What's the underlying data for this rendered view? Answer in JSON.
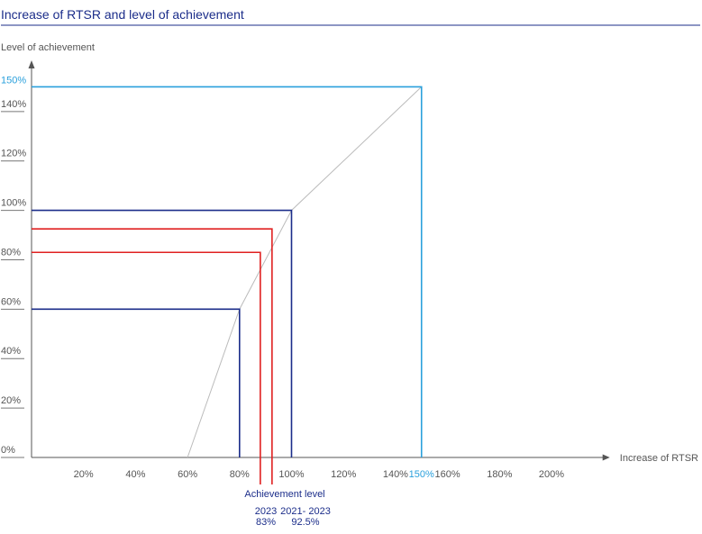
{
  "chart_data": {
    "type": "line",
    "title": "Increase of RTSR and level of achievement",
    "xlabel": "Increase of RTSR",
    "ylabel": "Level of achievement",
    "xlim": [
      0,
      220
    ],
    "ylim": [
      0,
      150
    ],
    "x_ticks": [
      "20%",
      "40%",
      "60%",
      "80%",
      "100%",
      "120%",
      "140%",
      "160%",
      "180%",
      "200%"
    ],
    "x_tick_values": [
      20,
      40,
      60,
      80,
      100,
      120,
      140,
      160,
      180,
      200
    ],
    "y_ticks": [
      "0%",
      "20%",
      "40%",
      "60%",
      "80%",
      "100%",
      "120%",
      "140%"
    ],
    "y_tick_values": [
      0,
      20,
      40,
      60,
      80,
      100,
      120,
      140
    ],
    "cap_label": "150%",
    "cap_value": 150,
    "curve": {
      "color": "#bbbbbb",
      "points": [
        [
          60,
          0
        ],
        [
          80,
          60
        ],
        [
          100,
          100
        ],
        [
          150,
          150
        ]
      ]
    },
    "guides": [
      {
        "x": 80,
        "y": 60,
        "color": "#1b2d8a"
      },
      {
        "x": 100,
        "y": 100,
        "color": "#1b2d8a"
      },
      {
        "x": 92.5,
        "y": 92.5,
        "color": "#e02020"
      },
      {
        "x": 88,
        "y": 83,
        "color": "#e02020"
      },
      {
        "x": 150,
        "y": 150,
        "color": "#2aa0dc"
      }
    ],
    "annotation": {
      "label": "Achievement level",
      "entries": [
        {
          "period": "2023",
          "value": "83%"
        },
        {
          "period": "2021- 2023",
          "value": "92.5%"
        }
      ]
    },
    "colors": {
      "title": "#1b2d8a",
      "axis": "#555555",
      "threshold": "#1b2d8a",
      "actual": "#e02020",
      "cap": "#2aa0dc"
    }
  }
}
